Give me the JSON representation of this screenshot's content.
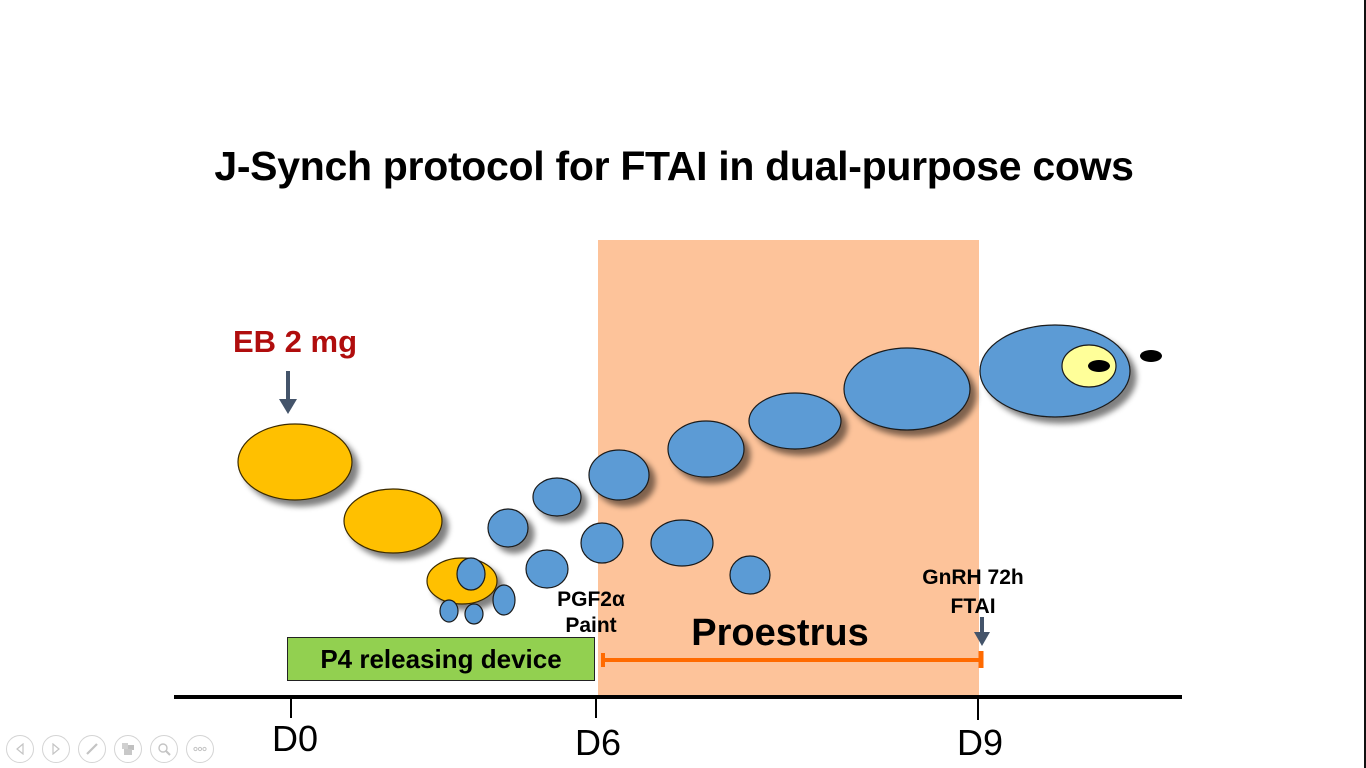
{
  "slide": {
    "title": "J-Synch protocol for FTAI in dual-purpose cows"
  },
  "labels": {
    "eb": "EB 2 mg",
    "pgf_line1": "PGF2α",
    "pgf_line2": "Paint",
    "gnrh_line1": "GnRH 72h",
    "gnrh_line2": "FTAI",
    "proestrus": "Proestrus",
    "device": "P4 releasing device"
  },
  "timeline": {
    "ticks": [
      "D0",
      "D6",
      "D9"
    ]
  },
  "colors": {
    "proestrus_band": "#fdc39a",
    "device_fill": "#92d050",
    "follicle_blue": "#5b9bd5",
    "corpus_luteum": "#ffc000",
    "oocyte_yellow": "#ffff99",
    "eb_text": "#b00d0d",
    "arrow": "#44546a",
    "proestrus_bar": "#ff6a00"
  },
  "navigation": {
    "icons": [
      "previous-icon",
      "next-icon",
      "pen-icon",
      "slides-icon",
      "zoom-icon",
      "more-icon"
    ]
  }
}
